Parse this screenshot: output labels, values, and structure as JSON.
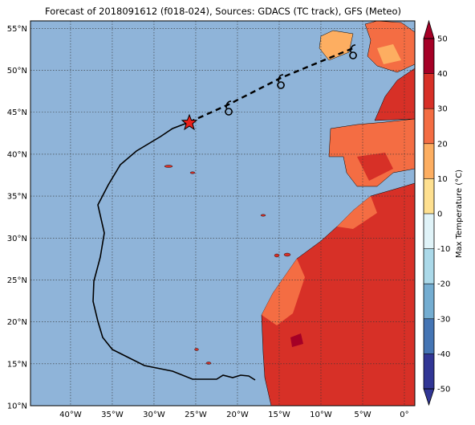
{
  "map": {
    "title": "Forecast of 2018091612 (f018-024), Sources: GDACS (TC track), GFS (Meteo)",
    "lonlim": [
      -44.8,
      1.25
    ],
    "latlim": [
      10,
      55.9
    ],
    "lon_ticks": [
      {
        "value": -40,
        "label": "40°W"
      },
      {
        "value": -35,
        "label": "35°W"
      },
      {
        "value": -30,
        "label": "30°W"
      },
      {
        "value": -25,
        "label": "25°W"
      },
      {
        "value": -20,
        "label": "20°W"
      },
      {
        "value": -15,
        "label": "15°W"
      },
      {
        "value": -10,
        "label": "10°W"
      },
      {
        "value": -5,
        "label": "5°W"
      },
      {
        "value": 0,
        "label": "0°"
      }
    ],
    "lat_ticks": [
      {
        "value": 10,
        "label": "10°N"
      },
      {
        "value": 15,
        "label": "15°N"
      },
      {
        "value": 20,
        "label": "20°N"
      },
      {
        "value": 25,
        "label": "25°N"
      },
      {
        "value": 30,
        "label": "30°N"
      },
      {
        "value": 35,
        "label": "35°N"
      },
      {
        "value": 40,
        "label": "40°N"
      },
      {
        "value": 45,
        "label": "45°N"
      },
      {
        "value": 50,
        "label": "50°N"
      },
      {
        "value": 55,
        "label": "55°N"
      }
    ],
    "colorbar": {
      "label": "Max Temperature (°C)",
      "ticks": [
        -50,
        -40,
        -30,
        -20,
        -10,
        0,
        10,
        20,
        30,
        40,
        50
      ],
      "colors": [
        "#313695",
        "#4575b4",
        "#74add1",
        "#abd9e9",
        "#e0f3f8",
        "#fee090",
        "#fdae61",
        "#f46d43",
        "#d73027",
        "#a50026"
      ]
    }
  }
}
